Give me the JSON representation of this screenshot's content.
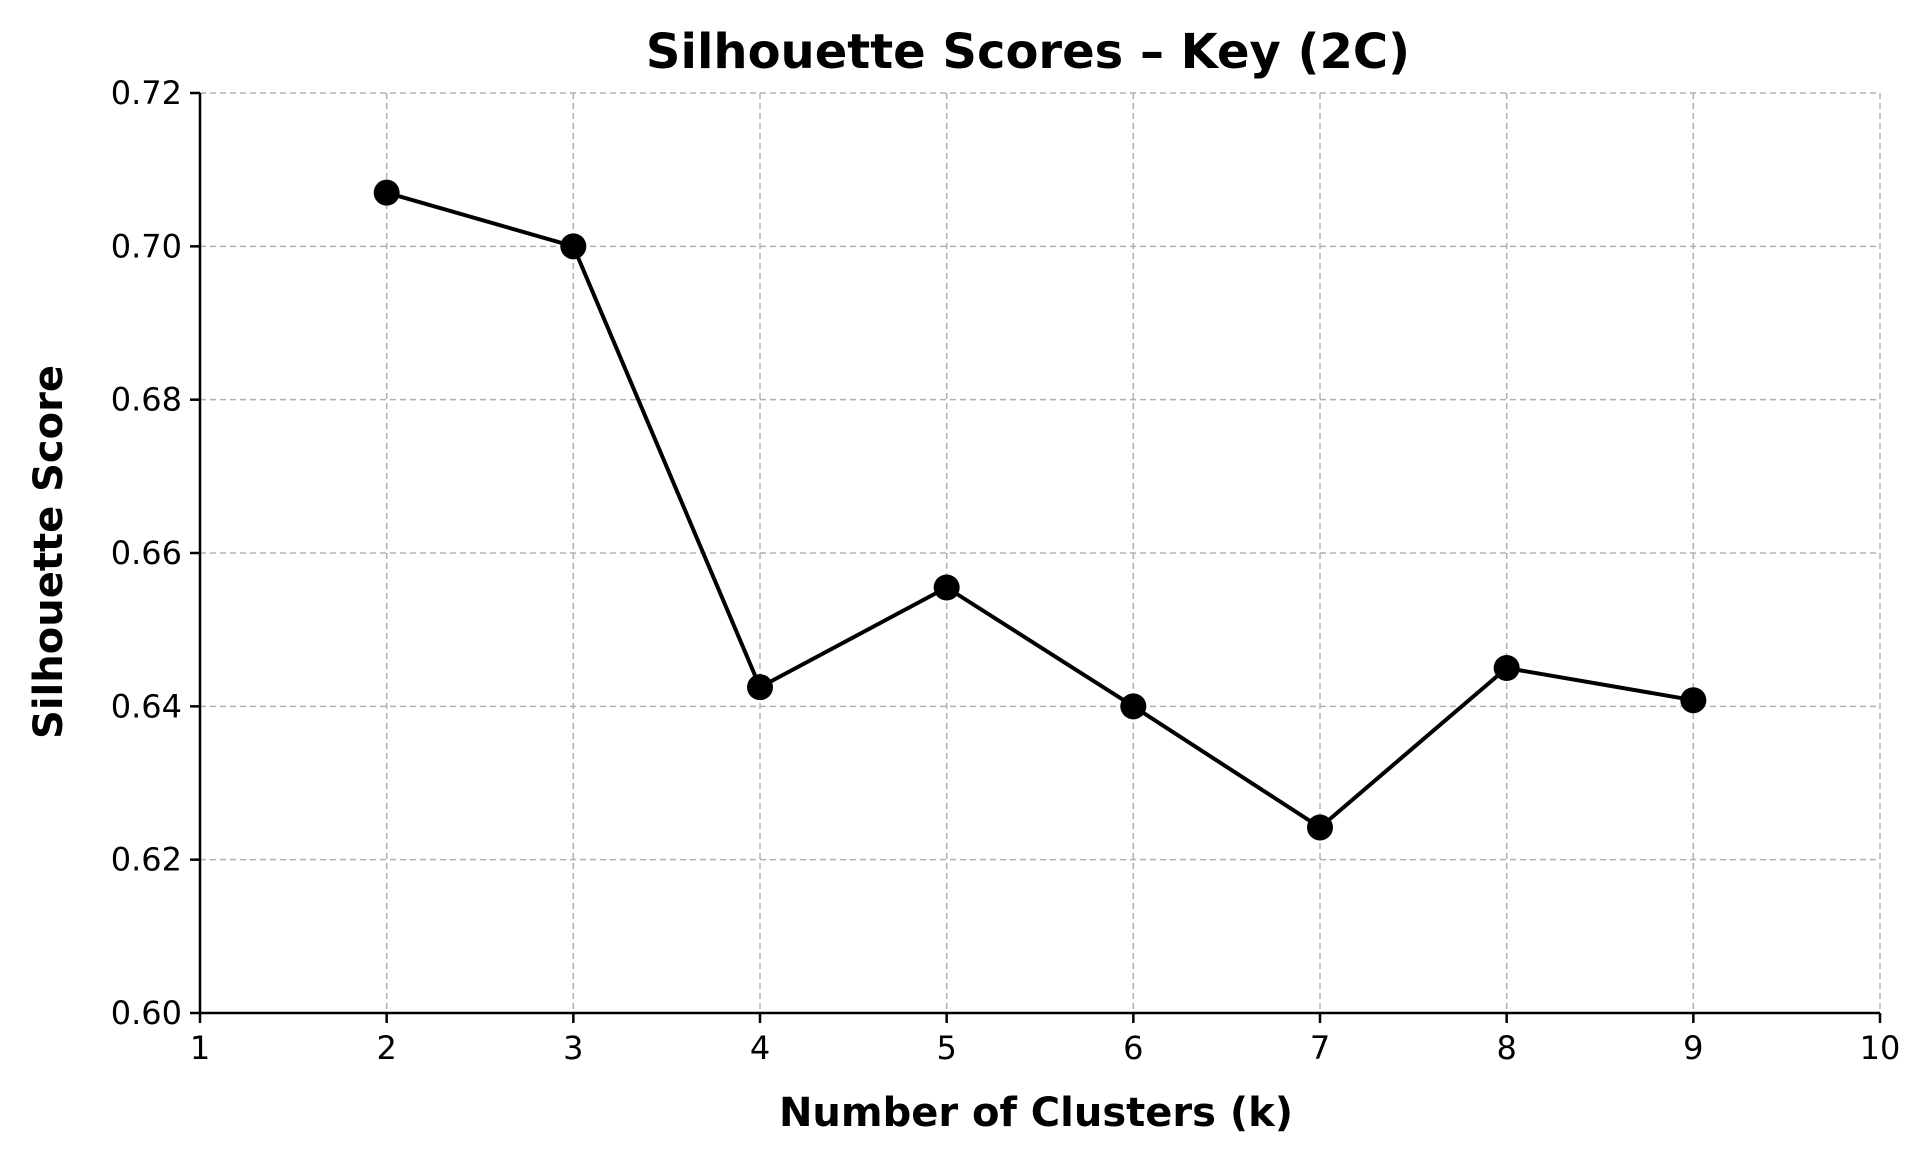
{
  "chart_data": {
    "type": "line",
    "title": "Silhouette Scores – Key (2C)",
    "xlabel": "Number of Clusters (k)",
    "ylabel": "Silhouette Score",
    "xlim": [
      1,
      10
    ],
    "ylim": [
      0.6,
      0.72
    ],
    "x_ticks": [
      1,
      2,
      3,
      4,
      5,
      6,
      7,
      8,
      9,
      10
    ],
    "y_ticks": [
      0.6,
      0.62,
      0.64,
      0.66,
      0.68,
      0.7,
      0.72
    ],
    "y_tick_labels": [
      "0.60",
      "0.62",
      "0.64",
      "0.66",
      "0.68",
      "0.70",
      "0.72"
    ],
    "grid": true,
    "line_color": "#000000",
    "marker": "circle",
    "series": [
      {
        "x": [
          2,
          3,
          4,
          5,
          6,
          7,
          8,
          9
        ],
        "values": [
          0.707,
          0.7,
          0.6425,
          0.6555,
          0.64,
          0.6242,
          0.645,
          0.6408
        ]
      }
    ]
  }
}
